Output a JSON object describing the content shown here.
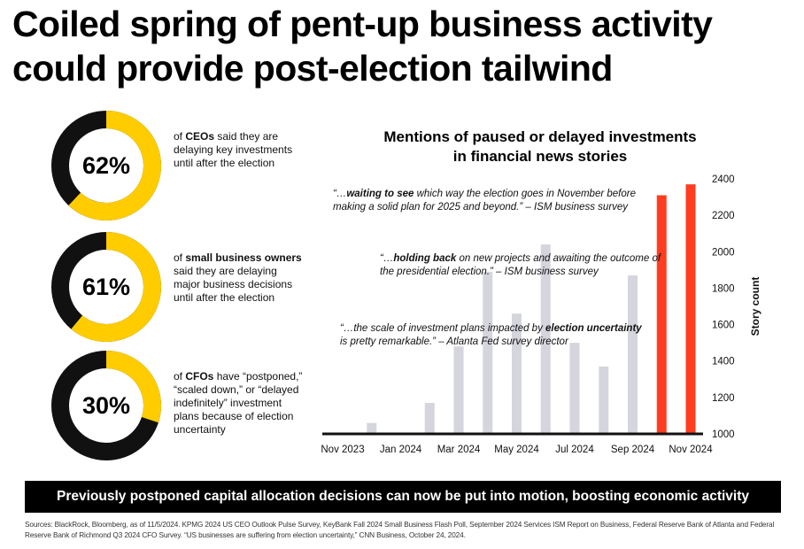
{
  "title": {
    "line1": "Coiled spring of pent-up business activity",
    "line2": "could provide post-election tailwind"
  },
  "stats": [
    {
      "value": "62%",
      "fraction": 0.62,
      "bold": "CEOs",
      "pre": "of ",
      "post": " said they are delaying key investments until after the election"
    },
    {
      "value": "61%",
      "fraction": 0.61,
      "bold": "small business owners",
      "pre": "of ",
      "post": " said they are delaying major business decisions until after the election"
    },
    {
      "value": "30%",
      "fraction": 0.3,
      "bold": "CFOs",
      "pre": "of ",
      "post": " have “postponed,” “scaled down,” or “delayed indefinitely” investment plans because of election uncertainty"
    }
  ],
  "colors": {
    "accent_yellow": "#FFCC00",
    "donut_track": "#111111",
    "bar_gray": "#D5D5DE",
    "bar_highlight": "#FF3D1F",
    "banner_bg": "#000000"
  },
  "chart_data": {
    "type": "bar",
    "title": "Mentions of paused or delayed investments in financial news stories",
    "title_lines": [
      "Mentions of paused or delayed investments",
      "in financial news stories"
    ],
    "ylabel": "Story count",
    "ylim": [
      1000,
      2400
    ],
    "yticks": [
      1000,
      1200,
      1400,
      1600,
      1800,
      2000,
      2200,
      2400
    ],
    "ytick_labels": [
      "1000",
      "1200",
      "1400",
      "1600",
      "1800",
      "2000",
      "2200",
      "2400"
    ],
    "y_axis_side": "right",
    "x_tick_labels": [
      "Nov 2023",
      "Jan 2024",
      "Mar 2024",
      "May 2024",
      "Jul 2024",
      "Sep 2024",
      "Nov 2024"
    ],
    "categories": [
      "Nov 2023",
      "Dec 2023",
      "Jan 2024",
      "Feb 2024",
      "Mar 2024",
      "Apr 2024",
      "May 2024",
      "Jun 2024",
      "Jul 2024",
      "Aug 2024",
      "Sep 2024",
      "Oct 2024",
      "Nov 2024"
    ],
    "values": [
      1000,
      1060,
      1000,
      1170,
      1480,
      1890,
      1660,
      2040,
      1500,
      1370,
      1870,
      2310,
      2370
    ],
    "highlighted": [
      11,
      12
    ],
    "grid": false
  },
  "quotes": [
    {
      "pre": "“…",
      "bold": "waiting to see",
      "post": " which way the election goes in November before",
      "line2": "making a solid plan for 2025 and beyond.” – ISM business survey"
    },
    {
      "pre": "“…",
      "bold": "holding back",
      "post": " on new projects and awaiting the outcome of",
      "line2": "the presidential election.” – ISM business survey"
    },
    {
      "pre": "“…the scale of investment plans impacted by ",
      "bold": "election uncertainty",
      "post": "",
      "line2": "is pretty remarkable.” – Atlanta Fed survey director"
    }
  ],
  "banner": "Previously postponed capital allocation decisions can now be put into motion, boosting economic activity",
  "sources": "Sources: BlackRock, Bloomberg, as of 11/5/2024. KPMG 2024 US CEO  Outlook Pulse Survey, KeyBank Fall 2024 Small Business Flash Poll, September 2024 Services  ISM Report on Business, Federal Reserve Bank of Atlanta and Federal Reserve Bank of Richmond Q3 2024 CFO Survey. “US businesses are suffering from election uncertainty,” CNN Business, October 24, 2024."
}
